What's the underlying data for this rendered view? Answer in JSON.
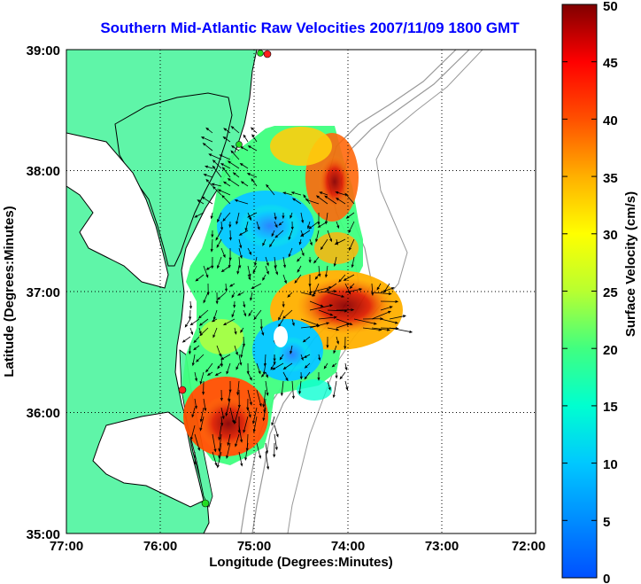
{
  "title": "Southern Mid-Atlantic Raw Velocities 2007/11/09 1800 GMT",
  "chart_data": {
    "type": "heatmap",
    "title": "Southern Mid-Atlantic Raw Velocities 2007/11/09 1800 GMT",
    "xlabel": "Longitude (Degrees:Minutes)",
    "ylabel": "Latitude (Degrees:Minutes)",
    "x_ticks": [
      "77:00",
      "76:00",
      "75:00",
      "74:00",
      "73:00",
      "72:00"
    ],
    "y_ticks": [
      "39:00",
      "38:00",
      "37:00",
      "36:00",
      "35:00"
    ],
    "xlim": [
      -77,
      -72
    ],
    "ylim": [
      35,
      39
    ],
    "grid": true,
    "colorbar": {
      "label": "Surface Velocity (cm/s)",
      "range": [
        0,
        50
      ],
      "ticks": [
        "50",
        "45",
        "40",
        "35",
        "30",
        "25",
        "20",
        "15",
        "10",
        "5",
        "0"
      ]
    },
    "colors": {
      "land": "#5ff5a8",
      "coast": "#000000",
      "bathymetry": "#999999",
      "station": "#ff2020",
      "station_alt": "#22dd22"
    }
  }
}
